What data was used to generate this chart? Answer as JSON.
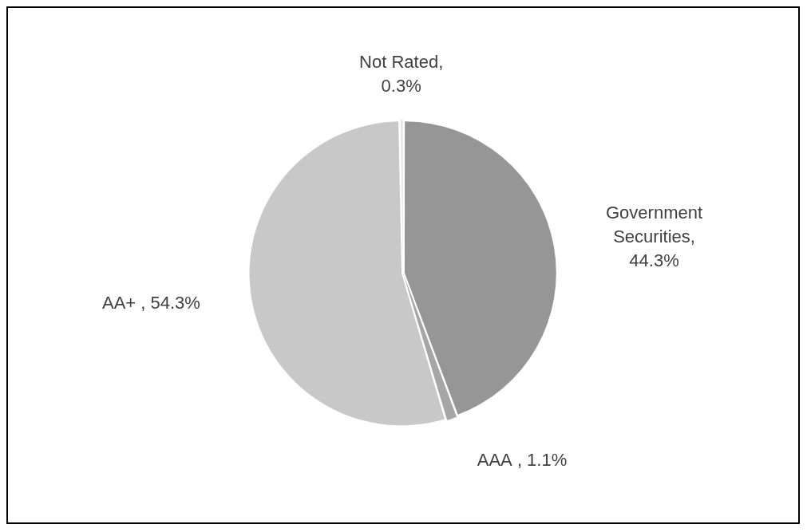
{
  "chart_data": {
    "type": "pie",
    "categories": [
      "Government Securities",
      "AAA",
      "AA+",
      "Not Rated"
    ],
    "values": [
      44.3,
      1.1,
      54.3,
      0.3
    ],
    "colors": [
      "#969696",
      "#a6a6a6",
      "#c8c8c8",
      "#e6e6e6"
    ],
    "value_labels": [
      ", 44.3%",
      " , 1.1%",
      " , 54.3%",
      ", 0.3%"
    ],
    "legend": false
  }
}
